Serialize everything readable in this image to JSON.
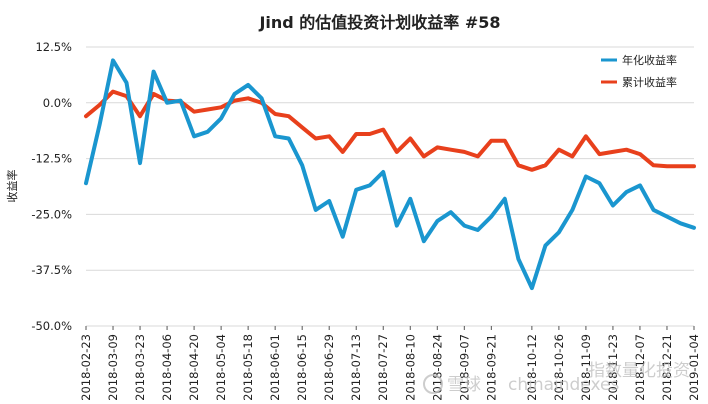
{
  "chart_data": {
    "type": "line",
    "title": "Jind 的估值投资计划收益率 #58",
    "xlabel": "",
    "ylabel": "收益率",
    "ylim": [
      -50,
      12.5
    ],
    "yticks": [
      12.5,
      0,
      -12.5,
      -25,
      -37.5,
      -50
    ],
    "ytick_labels": [
      "12.5%",
      "0.0%",
      "-12.5%",
      "-25.0%",
      "-37.5%",
      "-50.0%"
    ],
    "x": [
      "2018-02-23",
      "2018-03-02",
      "2018-03-09",
      "2018-03-16",
      "2018-03-23",
      "2018-03-30",
      "2018-04-06",
      "2018-04-13",
      "2018-04-20",
      "2018-04-27",
      "2018-05-04",
      "2018-05-11",
      "2018-05-18",
      "2018-05-25",
      "2018-06-01",
      "2018-06-08",
      "2018-06-15",
      "2018-06-22",
      "2018-06-29",
      "2018-07-06",
      "2018-07-13",
      "2018-07-20",
      "2018-07-27",
      "2018-08-03",
      "2018-08-10",
      "2018-08-17",
      "2018-08-24",
      "2018-08-31",
      "2018-09-07",
      "2018-09-14",
      "2018-09-21",
      "2018-09-28",
      "2018-10-05",
      "2018-10-12",
      "2018-10-19",
      "2018-10-26",
      "2018-11-02",
      "2018-11-09",
      "2018-11-16",
      "2018-11-23",
      "2018-11-30",
      "2018-12-07",
      "2018-12-14",
      "2018-12-21",
      "2018-12-28",
      "2019-01-04"
    ],
    "x_tick_labels": [
      "2018-02-23",
      "2018-03-09",
      "2018-03-23",
      "2018-04-06",
      "2018-04-20",
      "2018-05-04",
      "2018-05-18",
      "2018-06-01",
      "2018-06-15",
      "2018-06-29",
      "2018-07-13",
      "2018-07-27",
      "2018-08-10",
      "2018-08-24",
      "2018-09-07",
      "2018-09-21",
      "2018-10-12",
      "2018-10-26",
      "2018-11-09",
      "2018-11-23",
      "2018-12-07",
      "2018-12-21",
      "2019-01-04"
    ],
    "series": [
      {
        "name": "年化收益率",
        "color": "#1a96cf",
        "values": [
          -18,
          -5,
          9.5,
          4.5,
          -13.5,
          7,
          0,
          0.5,
          -7.5,
          -6.5,
          -3.5,
          2,
          4,
          1,
          -7.5,
          -8,
          -14,
          -24,
          -22,
          -30,
          -19.5,
          -18.5,
          -15.5,
          -27.5,
          -21.5,
          -31,
          -26.5,
          -24.5,
          -27.5,
          -28.5,
          -25.5,
          -21.5,
          -35,
          -41.5,
          -32,
          -29,
          -24,
          -16.5,
          -18,
          -23,
          -20,
          -18.5,
          -24,
          -25.5,
          -27,
          -28
        ]
      },
      {
        "name": "累计收益率",
        "color": "#e8401c",
        "values": [
          -3,
          -0.5,
          2.5,
          1.5,
          -3,
          2,
          0.5,
          0.3,
          -2,
          -1.5,
          -1,
          0.5,
          1,
          0,
          -2.5,
          -3,
          -5.5,
          -8,
          -7.5,
          -11,
          -7,
          -7,
          -6,
          -11,
          -8,
          -12,
          -10,
          -10.5,
          -11,
          -12,
          -8.5,
          -8.5,
          -14,
          -15,
          -14,
          -10.5,
          -12,
          -7.5,
          -11.5,
          -11,
          -10.5,
          -11.5,
          -14,
          -14.2,
          -14.2,
          -14.2
        ]
      }
    ],
    "grid": true,
    "legend": "top-right"
  },
  "watermark": {
    "brand": "雪球",
    "site": "chinaindexes",
    "account": "指数量化投资"
  }
}
